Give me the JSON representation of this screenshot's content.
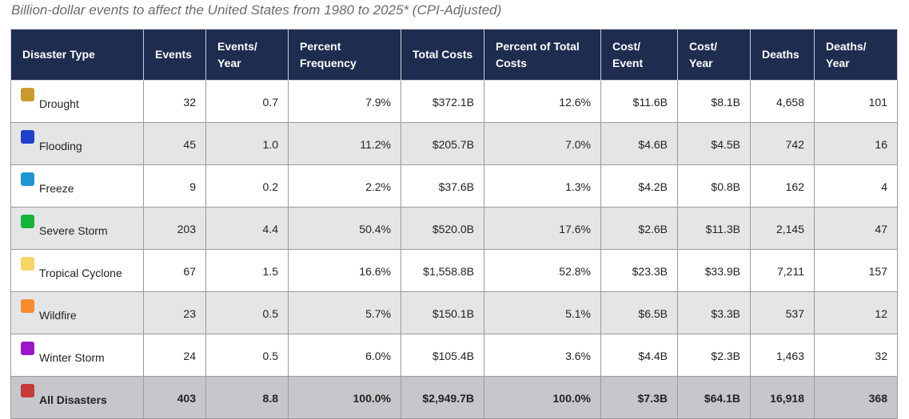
{
  "caption": "Billion-dollar events to affect the United States from 1980 to 2025* (CPI-Adjusted)",
  "headers": {
    "type": "Disaster Type",
    "events": "Events",
    "events_year": "Events/ Year",
    "pct_freq": "Percent Frequency",
    "total_costs": "Total Costs",
    "pct_total_costs": "Percent of Total Costs",
    "cost_event": "Cost/ Event",
    "cost_year": "Cost/ Year",
    "deaths": "Deaths",
    "deaths_year": "Deaths/ Year"
  },
  "rows": [
    {
      "type": "Drought",
      "color": "#c99a2e",
      "events": "32",
      "events_year": "0.7",
      "pct_freq": "7.9%",
      "total_costs": "$372.1B",
      "pct_total_costs": "12.6%",
      "cost_event": "$11.6B",
      "cost_year": "$8.1B",
      "deaths": "4,658",
      "deaths_year": "101"
    },
    {
      "type": "Flooding",
      "color": "#2040c8",
      "events": "45",
      "events_year": "1.0",
      "pct_freq": "11.2%",
      "total_costs": "$205.7B",
      "pct_total_costs": "7.0%",
      "cost_event": "$4.6B",
      "cost_year": "$4.5B",
      "deaths": "742",
      "deaths_year": "16"
    },
    {
      "type": "Freeze",
      "color": "#1e96d2",
      "events": "9",
      "events_year": "0.2",
      "pct_freq": "2.2%",
      "total_costs": "$37.6B",
      "pct_total_costs": "1.3%",
      "cost_event": "$4.2B",
      "cost_year": "$0.8B",
      "deaths": "162",
      "deaths_year": "4"
    },
    {
      "type": "Severe Storm",
      "color": "#14b43c",
      "events": "203",
      "events_year": "4.4",
      "pct_freq": "50.4%",
      "total_costs": "$520.0B",
      "pct_total_costs": "17.6%",
      "cost_event": "$2.6B",
      "cost_year": "$11.3B",
      "deaths": "2,145",
      "deaths_year": "47"
    },
    {
      "type": "Tropical Cyclone",
      "color": "#f8d466",
      "events": "67",
      "events_year": "1.5",
      "pct_freq": "16.6%",
      "total_costs": "$1,558.8B",
      "pct_total_costs": "52.8%",
      "cost_event": "$23.3B",
      "cost_year": "$33.9B",
      "deaths": "7,211",
      "deaths_year": "157"
    },
    {
      "type": "Wildfire",
      "color": "#fa8a2e",
      "events": "23",
      "events_year": "0.5",
      "pct_freq": "5.7%",
      "total_costs": "$150.1B",
      "pct_total_costs": "5.1%",
      "cost_event": "$6.5B",
      "cost_year": "$3.3B",
      "deaths": "537",
      "deaths_year": "12"
    },
    {
      "type": "Winter Storm",
      "color": "#9a16c8",
      "events": "24",
      "events_year": "0.5",
      "pct_freq": "6.0%",
      "total_costs": "$105.4B",
      "pct_total_costs": "3.6%",
      "cost_event": "$4.4B",
      "cost_year": "$2.3B",
      "deaths": "1,463",
      "deaths_year": "32"
    }
  ],
  "total": {
    "type": "All Disasters",
    "color": "#c83a3a",
    "events": "403",
    "events_year": "8.8",
    "pct_freq": "100.0%",
    "total_costs": "$2,949.7B",
    "pct_total_costs": "100.0%",
    "cost_event": "$7.3B",
    "cost_year": "$64.1B",
    "deaths": "16,918",
    "deaths_year": "368"
  }
}
